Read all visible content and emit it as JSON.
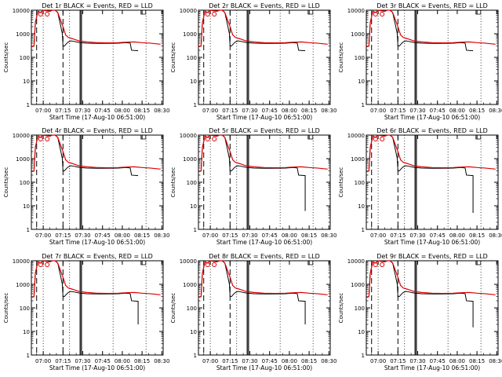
{
  "chart_data": {
    "type": "line",
    "layout": "3x3 grid",
    "y_scale": "log",
    "ylim": [
      1,
      10000
    ],
    "ylabel": "Counts/sec",
    "y_ticks": [
      1,
      10,
      100,
      1000,
      10000
    ],
    "y_tick_labels": [
      "1",
      "10",
      "100",
      "1000",
      "10000"
    ],
    "x_tick_labels": [
      "07:00",
      "07:15",
      "07:30",
      "07:45",
      "08:00",
      "08:15",
      "08:30"
    ],
    "xlabel": "Start Time (17-Aug-10 06:51:00)",
    "series_colors": {
      "events": "#000000",
      "lld": "#dd0000"
    },
    "panels": [
      {
        "title": "Det 1r BLACK = Events, RED = LLD",
        "drop": false
      },
      {
        "title": "Det 2r BLACK = Events, RED = LLD",
        "drop": false
      },
      {
        "title": "Det 3r BLACK = Events, RED = LLD",
        "drop": false
      },
      {
        "title": "Det 4r BLACK = Events, RED = LLD",
        "drop": false
      },
      {
        "title": "Det 5r BLACK = Events, RED = LLD",
        "drop": true,
        "drop_to": 6
      },
      {
        "title": "Det 6r BLACK = Events, RED = LLD",
        "drop": true,
        "drop_to": 5
      },
      {
        "title": "Det 7r BLACK = Events, RED = LLD",
        "drop": true,
        "drop_to": 20
      },
      {
        "title": "Det 8r BLACK = Events, RED = LLD",
        "drop": true,
        "drop_to": 20
      },
      {
        "title": "Det 9r BLACK = Events, RED = LLD",
        "drop": true,
        "drop_to": 15
      }
    ],
    "lld_curve": {
      "x_minutes": [
        0,
        2,
        3,
        5,
        7,
        9,
        11,
        14,
        16,
        18,
        20,
        22,
        24,
        26,
        28,
        30,
        32,
        36,
        42,
        50,
        58,
        66,
        72,
        78,
        84,
        90,
        98
      ],
      "y": [
        280,
        300,
        3000,
        9000,
        8000,
        10000,
        9500,
        9000,
        10000,
        10000,
        8000,
        4000,
        2000,
        900,
        700,
        650,
        600,
        500,
        450,
        420,
        410,
        420,
        440,
        450,
        420,
        400,
        360
      ]
    },
    "events_curve": {
      "x_minutes": [
        0,
        2,
        3,
        5,
        7,
        9,
        11,
        14,
        16,
        18,
        20,
        22,
        23.5,
        24,
        25,
        27,
        28,
        30,
        32,
        36,
        42,
        50,
        58,
        66,
        72,
        75,
        76,
        81
      ],
      "y": [
        280,
        300,
        3000,
        9000,
        8000,
        10000,
        9500,
        9000,
        10000,
        10000,
        8000,
        2500,
        1000,
        300,
        300,
        400,
        450,
        500,
        480,
        430,
        400,
        390,
        390,
        400,
        420,
        400,
        200,
        190
      ]
    },
    "dashed_markers_minutes": [
      4,
      24
    ],
    "solid_markers_minutes": [
      37,
      38
    ],
    "dotted_markers_minutes": [
      9,
      29,
      62,
      87
    ],
    "open_circles_minutes": [
      7,
      12
    ]
  }
}
